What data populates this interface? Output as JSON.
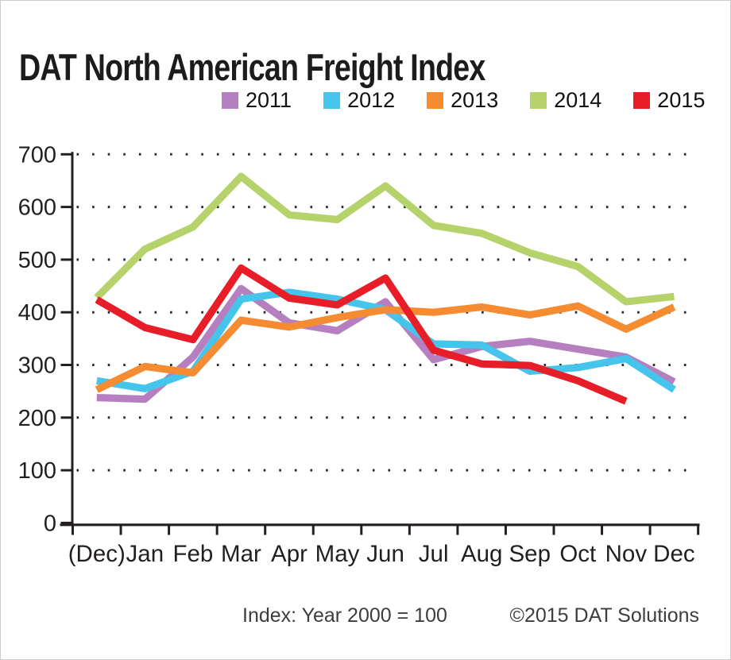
{
  "chart_data": {
    "type": "line",
    "title": "DAT North American Freight Index",
    "footer_note": "Index: Year 2000 = 100",
    "copyright": "©2015 DAT Solutions",
    "categories": [
      "(Dec)",
      "Jan",
      "Feb",
      "Mar",
      "Apr",
      "May",
      "Jun",
      "Jul",
      "Aug",
      "Sep",
      "Oct",
      "Nov",
      "Dec"
    ],
    "y_ticks": [
      0,
      100,
      200,
      300,
      400,
      500,
      600,
      700
    ],
    "ylim": [
      0,
      700
    ],
    "grid": "dotted-horizontal",
    "legend_position": "top-center",
    "axis_color": "#231f20",
    "series": [
      {
        "name": "2011",
        "color": "#b57fc0",
        "values": [
          238,
          235,
          315,
          445,
          380,
          365,
          420,
          310,
          335,
          345,
          330,
          315,
          268
        ]
      },
      {
        "name": "2012",
        "color": "#45c5ec",
        "values": [
          270,
          255,
          288,
          425,
          438,
          425,
          405,
          340,
          338,
          288,
          295,
          312,
          253
        ]
      },
      {
        "name": "2013",
        "color": "#f58c32",
        "values": [
          253,
          297,
          285,
          385,
          372,
          390,
          405,
          400,
          410,
          395,
          412,
          368,
          410
        ]
      },
      {
        "name": "2014",
        "color": "#b5d26b",
        "values": [
          428,
          520,
          562,
          658,
          585,
          576,
          640,
          565,
          550,
          513,
          487,
          420,
          430
        ]
      },
      {
        "name": "2015",
        "color": "#e71d28",
        "values": [
          424,
          371,
          348,
          484,
          427,
          414,
          465,
          328,
          302,
          299,
          270,
          231,
          null
        ]
      }
    ]
  }
}
